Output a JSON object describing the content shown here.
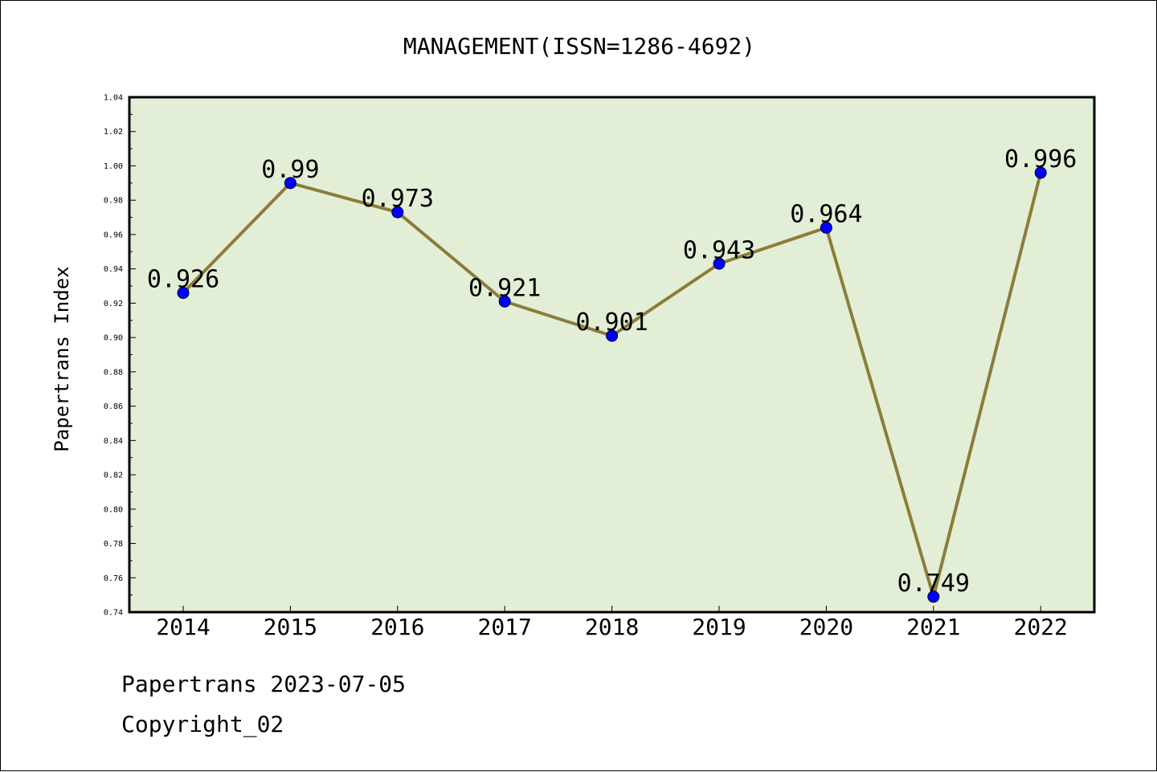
{
  "chart_data": {
    "type": "line",
    "title": "MANAGEMENT(ISSN=1286-4692)",
    "xlabel": "",
    "ylabel": "Papertrans Index",
    "categories": [
      "2014",
      "2015",
      "2016",
      "2017",
      "2018",
      "2019",
      "2020",
      "2021",
      "2022"
    ],
    "series": [
      {
        "values": [
          0.926,
          0.99,
          0.973,
          0.921,
          0.901,
          0.943,
          0.964,
          0.749,
          0.996
        ],
        "labels": [
          "0.926",
          "0.99",
          "0.973",
          "0.921",
          "0.901",
          "0.943",
          "0.964",
          "0.749",
          "0.996"
        ],
        "line_color": "#8b7d3a",
        "marker_color": "#0000ff"
      }
    ],
    "ylim": [
      0.74,
      1.04
    ],
    "yticks": [
      "0.74",
      "0.76",
      "0.78",
      "0.80",
      "0.82",
      "0.84",
      "0.86",
      "0.88",
      "0.90",
      "0.92",
      "0.94",
      "0.96",
      "0.98",
      "1.00",
      "1.02",
      "1.04"
    ],
    "grid": false,
    "plot_background": "#e2efd6"
  },
  "footer": {
    "line1": "Papertrans 2023-07-05",
    "line2": "Copyright_02"
  }
}
